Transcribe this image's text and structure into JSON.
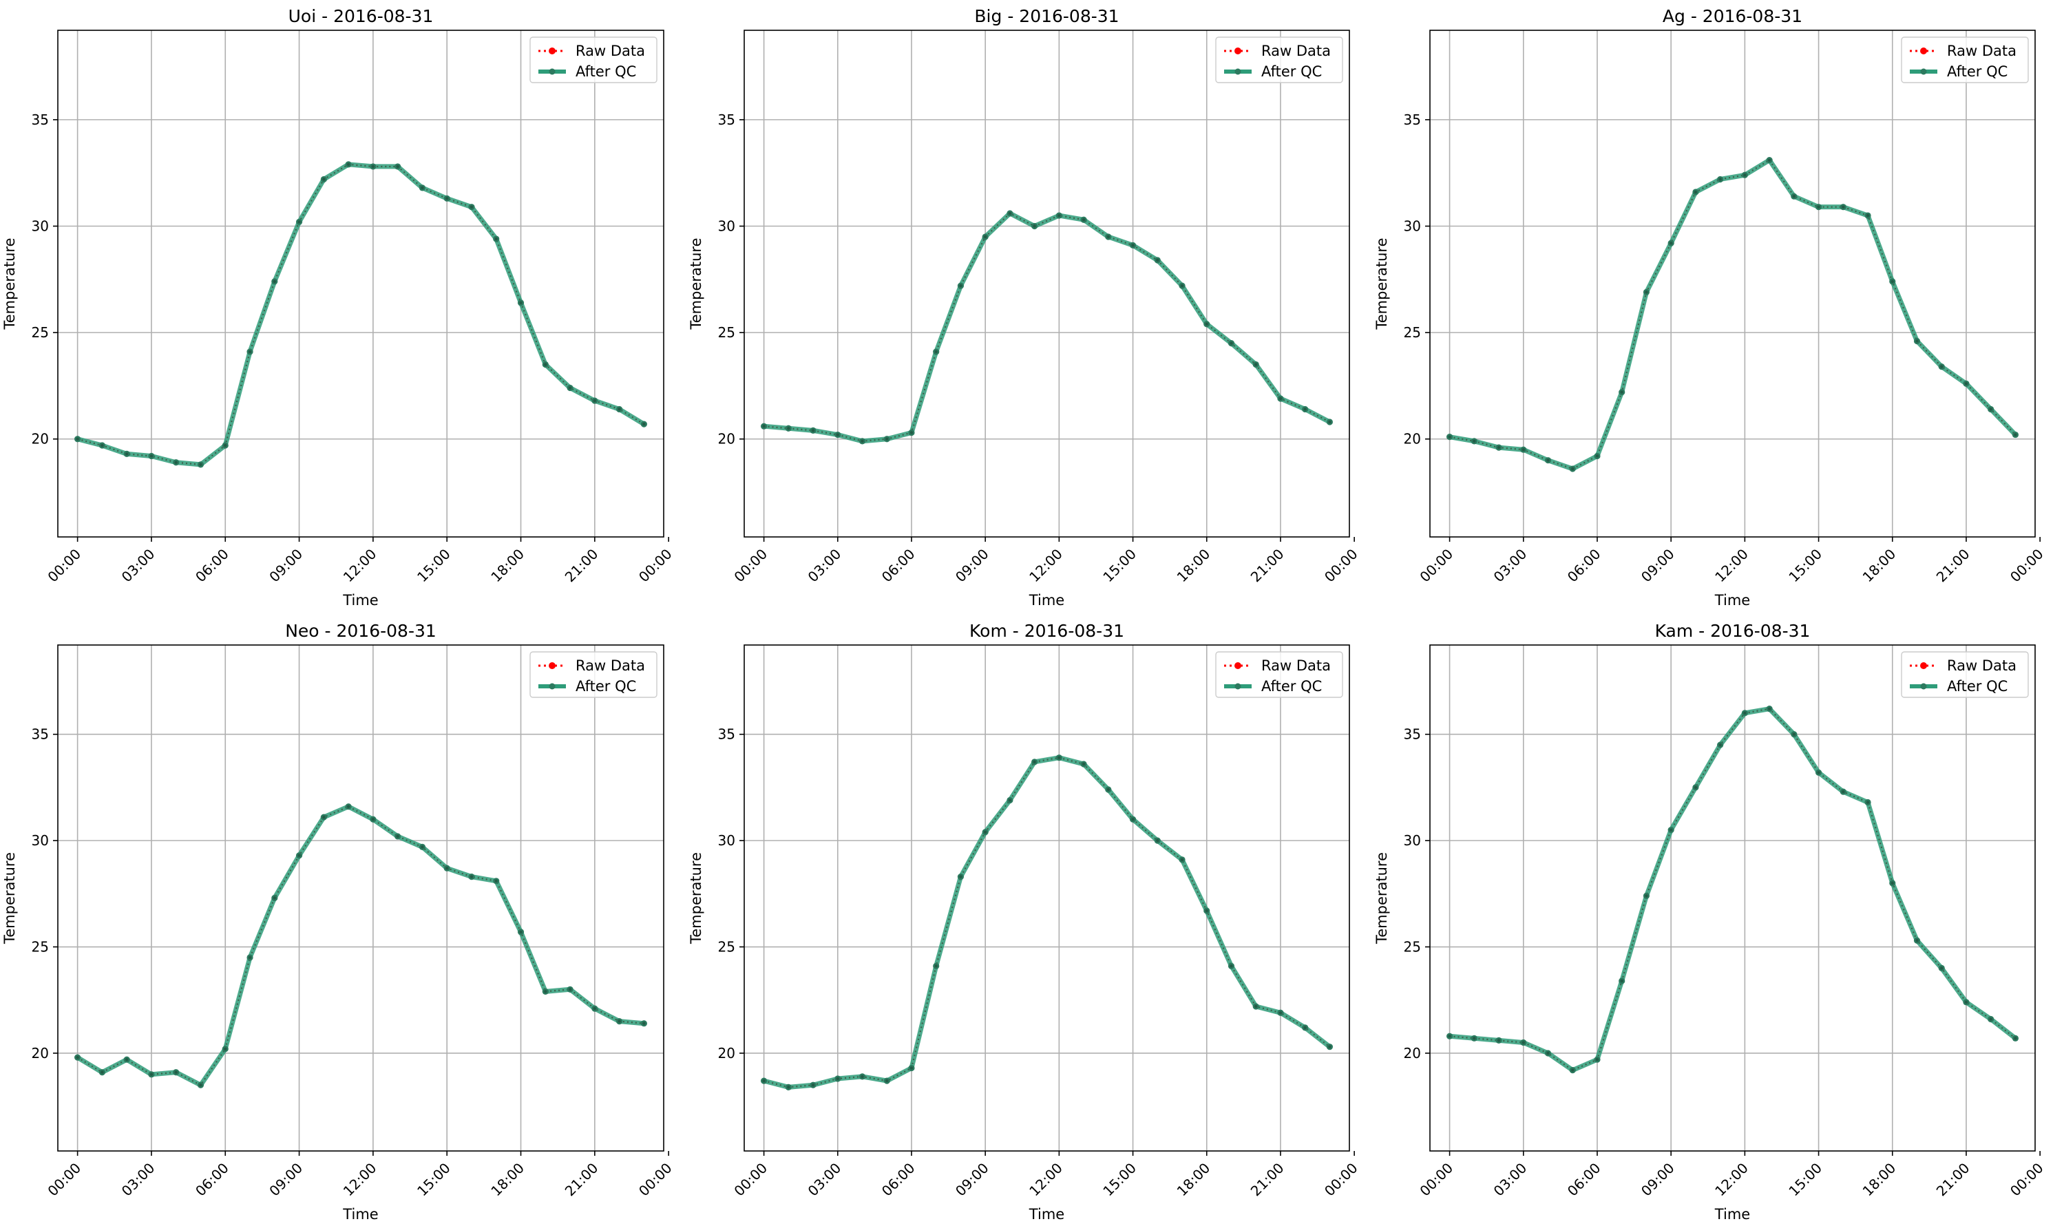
{
  "figure": {
    "colors": {
      "raw": "#ff0000",
      "qc": "#2e9c79",
      "grid": "#b0b0b0",
      "axis": "#000000"
    }
  },
  "chart_data": [
    {
      "type": "line",
      "title": "Uoi - 2016-08-31",
      "xlabel": "Time",
      "ylabel": "Temperature",
      "x_unit": "hour",
      "xlim": [
        -0.8,
        23.8
      ],
      "ylim": [
        15.4,
        39.2
      ],
      "xticks": [
        0,
        3,
        6,
        9,
        12,
        15,
        18,
        21,
        24
      ],
      "xtick_labels": [
        "00:00",
        "03:00",
        "06:00",
        "09:00",
        "12:00",
        "15:00",
        "18:00",
        "21:00",
        "00:00"
      ],
      "yticks": [
        20,
        25,
        30,
        35
      ],
      "grid": true,
      "legend": {
        "position": "top-right",
        "entries": [
          "Raw Data",
          "After QC"
        ]
      },
      "x": [
        0,
        1,
        2,
        3,
        4,
        5,
        6,
        7,
        8,
        9,
        10,
        11,
        12,
        13,
        14,
        15,
        16,
        17,
        18,
        19,
        20,
        21,
        22,
        23
      ],
      "series": [
        {
          "name": "Raw Data",
          "values": [
            20.0,
            19.7,
            19.3,
            19.2,
            18.9,
            18.8,
            19.7,
            24.1,
            27.4,
            30.2,
            32.2,
            32.9,
            32.8,
            32.8,
            31.8,
            31.3,
            30.9,
            29.4,
            26.4,
            23.5,
            22.4,
            21.8,
            21.4,
            20.7
          ]
        },
        {
          "name": "After QC",
          "values": [
            20.0,
            19.7,
            19.3,
            19.2,
            18.9,
            18.8,
            19.7,
            24.1,
            27.4,
            30.2,
            32.2,
            32.9,
            32.8,
            32.8,
            31.8,
            31.3,
            30.9,
            29.4,
            26.4,
            23.5,
            22.4,
            21.8,
            21.4,
            20.7
          ]
        }
      ]
    },
    {
      "type": "line",
      "title": "Big - 2016-08-31",
      "xlabel": "Time",
      "ylabel": "Temperature",
      "x_unit": "hour",
      "xlim": [
        -0.8,
        23.8
      ],
      "ylim": [
        15.4,
        39.2
      ],
      "xticks": [
        0,
        3,
        6,
        9,
        12,
        15,
        18,
        21,
        24
      ],
      "xtick_labels": [
        "00:00",
        "03:00",
        "06:00",
        "09:00",
        "12:00",
        "15:00",
        "18:00",
        "21:00",
        "00:00"
      ],
      "yticks": [
        20,
        25,
        30,
        35
      ],
      "grid": true,
      "legend": {
        "position": "top-right",
        "entries": [
          "Raw Data",
          "After QC"
        ]
      },
      "x": [
        0,
        1,
        2,
        3,
        4,
        5,
        6,
        7,
        8,
        9,
        10,
        11,
        12,
        13,
        14,
        15,
        16,
        17,
        18,
        19,
        20,
        21,
        22,
        23
      ],
      "series": [
        {
          "name": "Raw Data",
          "values": [
            20.6,
            20.5,
            20.4,
            20.2,
            19.9,
            20.0,
            20.3,
            24.1,
            27.2,
            29.5,
            30.6,
            30.0,
            30.5,
            30.3,
            29.5,
            29.1,
            28.4,
            27.2,
            25.4,
            24.5,
            23.5,
            21.9,
            21.4,
            20.8
          ]
        },
        {
          "name": "After QC",
          "values": [
            20.6,
            20.5,
            20.4,
            20.2,
            19.9,
            20.0,
            20.3,
            24.1,
            27.2,
            29.5,
            30.6,
            30.0,
            30.5,
            30.3,
            29.5,
            29.1,
            28.4,
            27.2,
            25.4,
            24.5,
            23.5,
            21.9,
            21.4,
            20.8
          ]
        }
      ]
    },
    {
      "type": "line",
      "title": "Ag - 2016-08-31",
      "xlabel": "Time",
      "ylabel": "Temperature",
      "x_unit": "hour",
      "xlim": [
        -0.8,
        23.8
      ],
      "ylim": [
        15.4,
        39.2
      ],
      "xticks": [
        0,
        3,
        6,
        9,
        12,
        15,
        18,
        21,
        24
      ],
      "xtick_labels": [
        "00:00",
        "03:00",
        "06:00",
        "09:00",
        "12:00",
        "15:00",
        "18:00",
        "21:00",
        "00:00"
      ],
      "yticks": [
        20,
        25,
        30,
        35
      ],
      "grid": true,
      "legend": {
        "position": "top-right",
        "entries": [
          "Raw Data",
          "After QC"
        ]
      },
      "x": [
        0,
        1,
        2,
        3,
        4,
        5,
        6,
        7,
        8,
        9,
        10,
        11,
        12,
        13,
        14,
        15,
        16,
        17,
        18,
        19,
        20,
        21,
        22,
        23
      ],
      "series": [
        {
          "name": "Raw Data",
          "values": [
            20.1,
            19.9,
            19.6,
            19.5,
            19.0,
            18.6,
            19.2,
            22.2,
            26.9,
            29.2,
            31.6,
            32.2,
            32.4,
            33.1,
            31.4,
            30.9,
            30.9,
            30.5,
            27.4,
            24.6,
            23.4,
            22.6,
            21.4,
            20.2
          ]
        },
        {
          "name": "After QC",
          "values": [
            20.1,
            19.9,
            19.6,
            19.5,
            19.0,
            18.6,
            19.2,
            22.2,
            26.9,
            29.2,
            31.6,
            32.2,
            32.4,
            33.1,
            31.4,
            30.9,
            30.9,
            30.5,
            27.4,
            24.6,
            23.4,
            22.6,
            21.4,
            20.2
          ]
        }
      ]
    },
    {
      "type": "line",
      "title": "Neo - 2016-08-31",
      "xlabel": "Time",
      "ylabel": "Temperature",
      "x_unit": "hour",
      "xlim": [
        -0.8,
        23.8
      ],
      "ylim": [
        15.4,
        39.2
      ],
      "xticks": [
        0,
        3,
        6,
        9,
        12,
        15,
        18,
        21,
        24
      ],
      "xtick_labels": [
        "00:00",
        "03:00",
        "06:00",
        "09:00",
        "12:00",
        "15:00",
        "18:00",
        "21:00",
        "00:00"
      ],
      "yticks": [
        20,
        25,
        30,
        35
      ],
      "grid": true,
      "legend": {
        "position": "top-right",
        "entries": [
          "Raw Data",
          "After QC"
        ]
      },
      "x": [
        0,
        1,
        2,
        3,
        4,
        5,
        6,
        7,
        8,
        9,
        10,
        11,
        12,
        13,
        14,
        15,
        16,
        17,
        18,
        19,
        20,
        21,
        22,
        23
      ],
      "series": [
        {
          "name": "Raw Data",
          "values": [
            19.8,
            19.1,
            19.7,
            19.0,
            19.1,
            18.5,
            20.2,
            24.5,
            27.3,
            29.3,
            31.1,
            31.6,
            31.0,
            30.2,
            29.7,
            28.7,
            28.3,
            28.1,
            25.7,
            22.9,
            23.0,
            22.1,
            21.5,
            21.4
          ]
        },
        {
          "name": "After QC",
          "values": [
            19.8,
            19.1,
            19.7,
            19.0,
            19.1,
            18.5,
            20.2,
            24.5,
            27.3,
            29.3,
            31.1,
            31.6,
            31.0,
            30.2,
            29.7,
            28.7,
            28.3,
            28.1,
            25.7,
            22.9,
            23.0,
            22.1,
            21.5,
            21.4
          ]
        }
      ]
    },
    {
      "type": "line",
      "title": "Kom - 2016-08-31",
      "xlabel": "Time",
      "ylabel": "Temperature",
      "x_unit": "hour",
      "xlim": [
        -0.8,
        23.8
      ],
      "ylim": [
        15.4,
        39.2
      ],
      "xticks": [
        0,
        3,
        6,
        9,
        12,
        15,
        18,
        21,
        24
      ],
      "xtick_labels": [
        "00:00",
        "03:00",
        "06:00",
        "09:00",
        "12:00",
        "15:00",
        "18:00",
        "21:00",
        "00:00"
      ],
      "yticks": [
        20,
        25,
        30,
        35
      ],
      "grid": true,
      "legend": {
        "position": "top-right",
        "entries": [
          "Raw Data",
          "After QC"
        ]
      },
      "x": [
        0,
        1,
        2,
        3,
        4,
        5,
        6,
        7,
        8,
        9,
        10,
        11,
        12,
        13,
        14,
        15,
        16,
        17,
        18,
        19,
        20,
        21,
        22,
        23
      ],
      "series": [
        {
          "name": "Raw Data",
          "values": [
            18.7,
            18.4,
            18.5,
            18.8,
            18.9,
            18.7,
            19.3,
            24.1,
            28.3,
            30.4,
            31.9,
            33.7,
            33.9,
            33.6,
            32.4,
            31.0,
            30.0,
            29.1,
            26.7,
            24.1,
            22.2,
            21.9,
            21.2,
            20.3
          ]
        },
        {
          "name": "After QC",
          "values": [
            18.7,
            18.4,
            18.5,
            18.8,
            18.9,
            18.7,
            19.3,
            24.1,
            28.3,
            30.4,
            31.9,
            33.7,
            33.9,
            33.6,
            32.4,
            31.0,
            30.0,
            29.1,
            26.7,
            24.1,
            22.2,
            21.9,
            21.2,
            20.3
          ]
        }
      ]
    },
    {
      "type": "line",
      "title": "Kam - 2016-08-31",
      "xlabel": "Time",
      "ylabel": "Temperature",
      "x_unit": "hour",
      "xlim": [
        -0.8,
        23.8
      ],
      "ylim": [
        15.4,
        39.2
      ],
      "xticks": [
        0,
        3,
        6,
        9,
        12,
        15,
        18,
        21,
        24
      ],
      "xtick_labels": [
        "00:00",
        "03:00",
        "06:00",
        "09:00",
        "12:00",
        "15:00",
        "18:00",
        "21:00",
        "00:00"
      ],
      "yticks": [
        20,
        25,
        30,
        35
      ],
      "grid": true,
      "legend": {
        "position": "top-right",
        "entries": [
          "Raw Data",
          "After QC"
        ]
      },
      "x": [
        0,
        1,
        2,
        3,
        4,
        5,
        6,
        7,
        8,
        9,
        10,
        11,
        12,
        13,
        14,
        15,
        16,
        17,
        18,
        19,
        20,
        21,
        22,
        23
      ],
      "series": [
        {
          "name": "Raw Data",
          "values": [
            20.8,
            20.7,
            20.6,
            20.5,
            20.0,
            19.2,
            19.7,
            23.4,
            27.4,
            30.5,
            32.5,
            34.5,
            36.0,
            36.2,
            35.0,
            33.2,
            32.3,
            31.8,
            28.0,
            25.3,
            24.0,
            22.4,
            21.6,
            20.7
          ]
        },
        {
          "name": "After QC",
          "values": [
            20.8,
            20.7,
            20.6,
            20.5,
            20.0,
            19.2,
            19.7,
            23.4,
            27.4,
            30.5,
            32.5,
            34.5,
            36.0,
            36.2,
            35.0,
            33.2,
            32.3,
            31.8,
            28.0,
            25.3,
            24.0,
            22.4,
            21.6,
            20.7
          ]
        }
      ]
    }
  ]
}
